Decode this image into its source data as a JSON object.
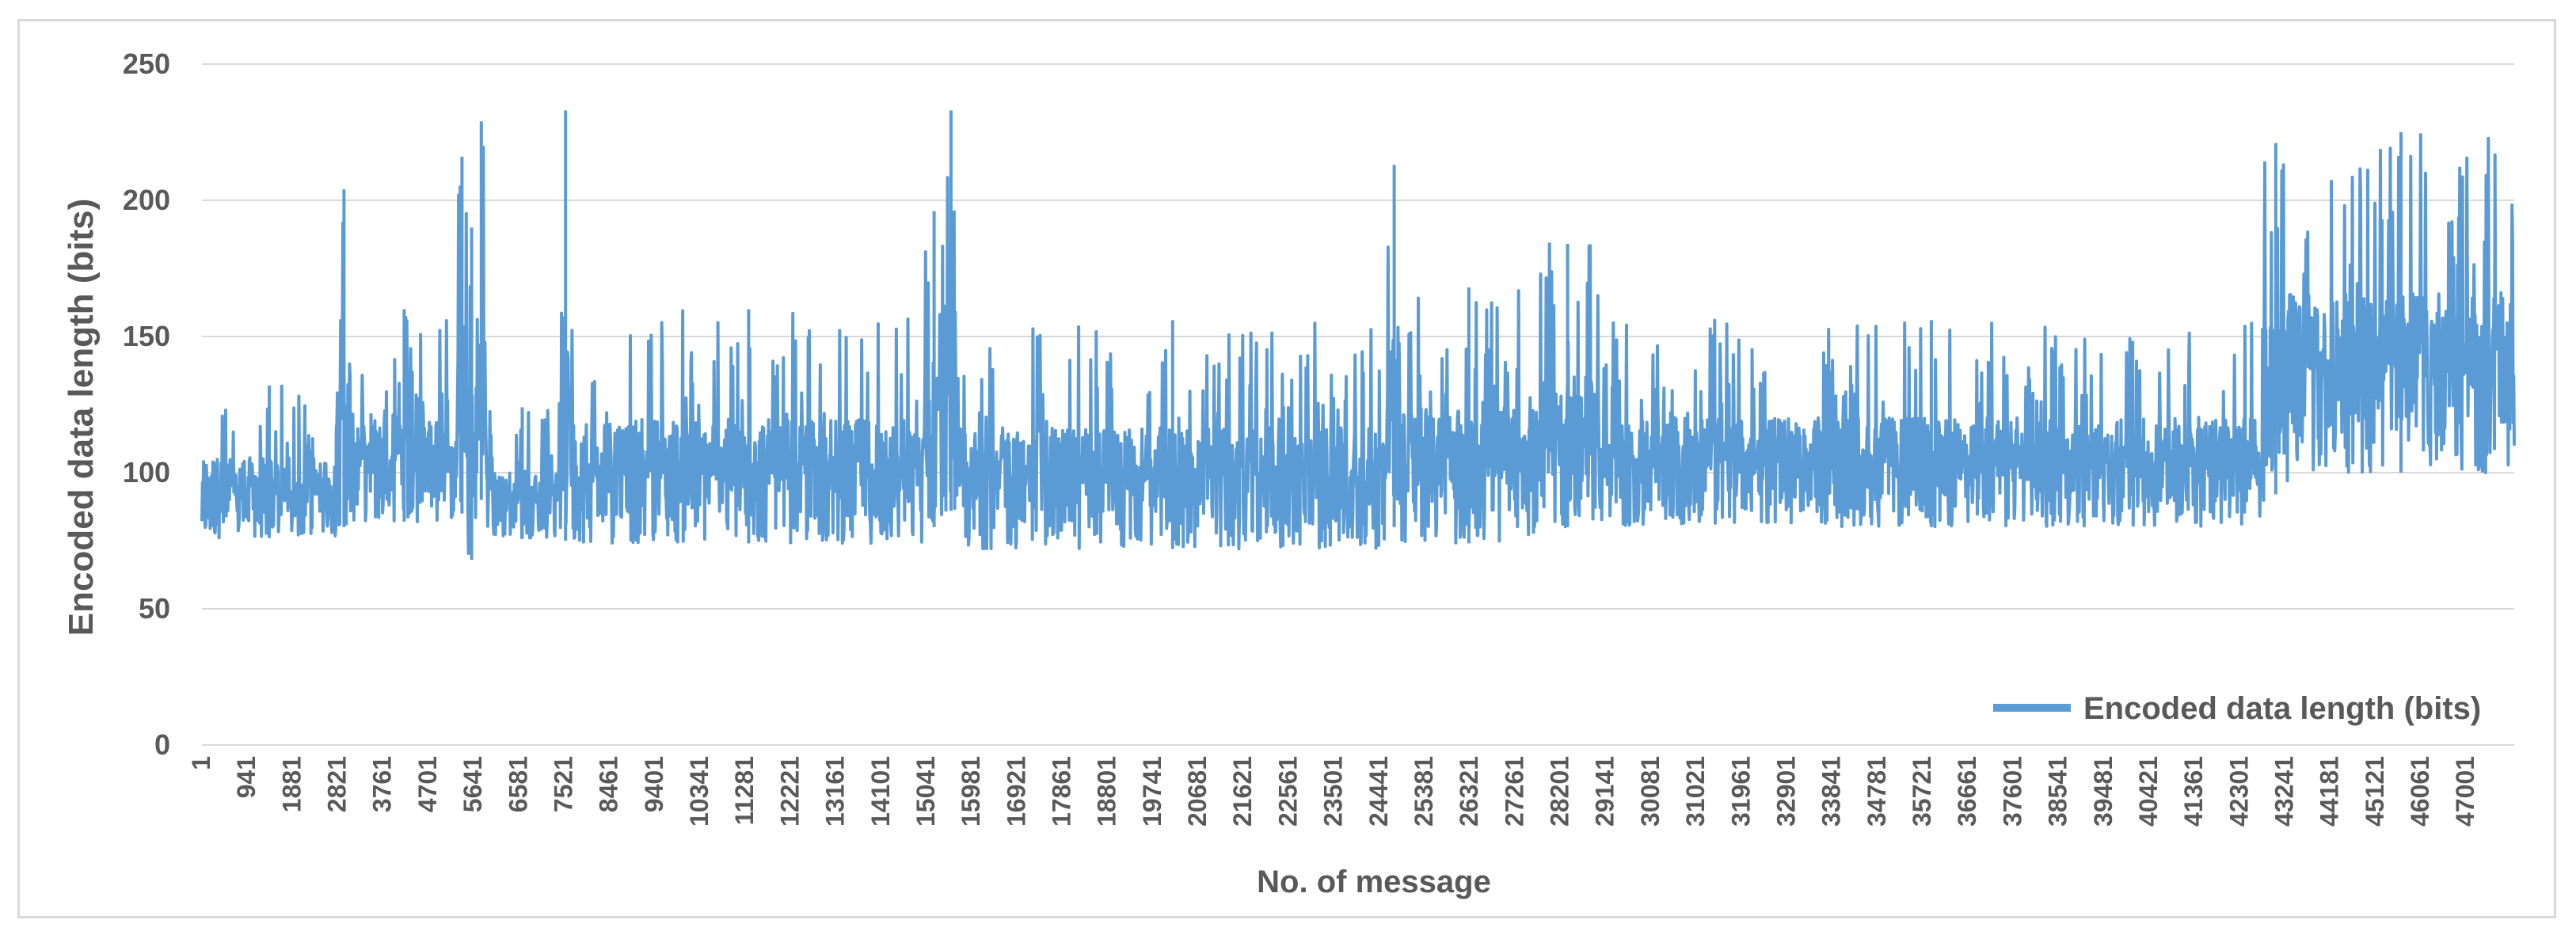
{
  "chart_data": {
    "type": "line",
    "xlabel": "No. of message",
    "ylabel": "Encoded data length (bits)",
    "ylim": [
      0,
      250
    ],
    "y_ticks": [
      0,
      50,
      100,
      150,
      200,
      250
    ],
    "x_range": [
      1,
      48000
    ],
    "x_tick_labels": [
      "1",
      "941",
      "1881",
      "2821",
      "3761",
      "4701",
      "5641",
      "6581",
      "7521",
      "8461",
      "9401",
      "10341",
      "11281",
      "12221",
      "13161",
      "14101",
      "15041",
      "15981",
      "16921",
      "17861",
      "18801",
      "19741",
      "20681",
      "21621",
      "22561",
      "23501",
      "24441",
      "25381",
      "26321",
      "27261",
      "28201",
      "29141",
      "30081",
      "31021",
      "31961",
      "32901",
      "33841",
      "34781",
      "35721",
      "36661",
      "37601",
      "38541",
      "39481",
      "40421",
      "41361",
      "42301",
      "43241",
      "44181",
      "45121",
      "46061",
      "47001"
    ],
    "grid": "horizontal",
    "legend": {
      "position": "bottom-right"
    },
    "colors": {
      "series": "#5b9bd5",
      "grid": "#d9d9d9",
      "text": "#595959"
    },
    "series": [
      {
        "name": "Encoded data length (bits)",
        "note_values": "per-segment value envelopes (min, max) read from the plot; dense high-frequency trace",
        "envelope": [
          {
            "x0": 1,
            "x1": 2800,
            "min": 76,
            "max": 132
          },
          {
            "x0": 2800,
            "x1": 3100,
            "min": 80,
            "max": 204
          },
          {
            "x0": 3100,
            "x1": 5300,
            "min": 82,
            "max": 160
          },
          {
            "x0": 5300,
            "x1": 5500,
            "min": 85,
            "max": 216
          },
          {
            "x0": 5500,
            "x1": 5700,
            "min": 68,
            "max": 190
          },
          {
            "x0": 5700,
            "x1": 5900,
            "min": 90,
            "max": 229
          },
          {
            "x0": 5900,
            "x1": 7400,
            "min": 76,
            "max": 124
          },
          {
            "x0": 7400,
            "x1": 7700,
            "min": 75,
            "max": 233
          },
          {
            "x0": 7700,
            "x1": 15000,
            "min": 74,
            "max": 160
          },
          {
            "x0": 15000,
            "x1": 15400,
            "min": 80,
            "max": 196
          },
          {
            "x0": 15400,
            "x1": 15700,
            "min": 86,
            "max": 233
          },
          {
            "x0": 15700,
            "x1": 24600,
            "min": 72,
            "max": 156
          },
          {
            "x0": 24600,
            "x1": 24900,
            "min": 80,
            "max": 213
          },
          {
            "x0": 24900,
            "x1": 27700,
            "min": 74,
            "max": 168
          },
          {
            "x0": 27700,
            "x1": 29000,
            "min": 80,
            "max": 184
          },
          {
            "x0": 29000,
            "x1": 42800,
            "min": 80,
            "max": 156
          },
          {
            "x0": 42800,
            "x1": 43300,
            "min": 92,
            "max": 221
          },
          {
            "x0": 43300,
            "x1": 48000,
            "min": 100,
            "max": 225
          }
        ]
      }
    ]
  }
}
